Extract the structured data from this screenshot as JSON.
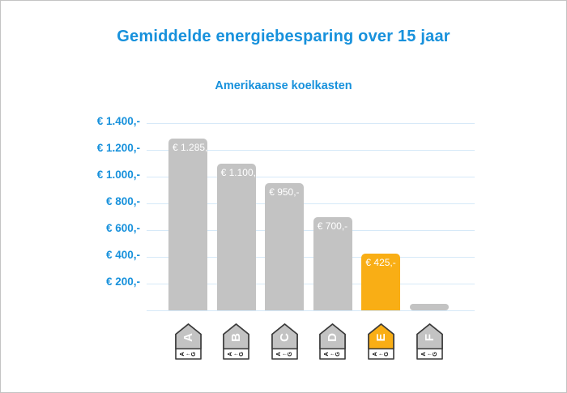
{
  "colors": {
    "accent_blue": "#1791DC",
    "bar_gray": "#C3C3C3",
    "bar_highlight_orange": "#F9AE15",
    "gridline": "#D6E9F8",
    "tag_border": "#3A3A3A",
    "bar_label_text": "#FFFFFF",
    "tag_scale_text": "#111111",
    "frame_border": "#C4C4C4",
    "background": "#FFFFFF"
  },
  "chart_data": {
    "type": "bar",
    "title": "Gemiddelde energiebesparing over 15 jaar",
    "subtitle": "Amerikaanse koelkasten",
    "categories": [
      "A",
      "B",
      "C",
      "D",
      "E",
      "F"
    ],
    "values": [
      1285,
      1100,
      950,
      700,
      425,
      50
    ],
    "bar_labels": [
      "€ 1.285,-",
      "€ 1.100,-",
      "€ 950,-",
      "€ 700,-",
      "€ 425,-",
      ""
    ],
    "highlight_index": 4,
    "ytick_values": [
      200,
      400,
      600,
      800,
      1000,
      1200,
      1400
    ],
    "ytick_labels": [
      "€ 200,-",
      "€ 400,-",
      "€ 600,-",
      "€ 800,-",
      "€ 1.000,-",
      "€ 1.200,-",
      "€ 1.400,-"
    ],
    "ylim": [
      0,
      1500
    ],
    "grid": true,
    "legend": false,
    "xlabel": "",
    "ylabel": "",
    "x_axis_icons": "energy-class-tags",
    "energy_scale": {
      "from": "A",
      "arrow": "←",
      "to": "G"
    }
  }
}
